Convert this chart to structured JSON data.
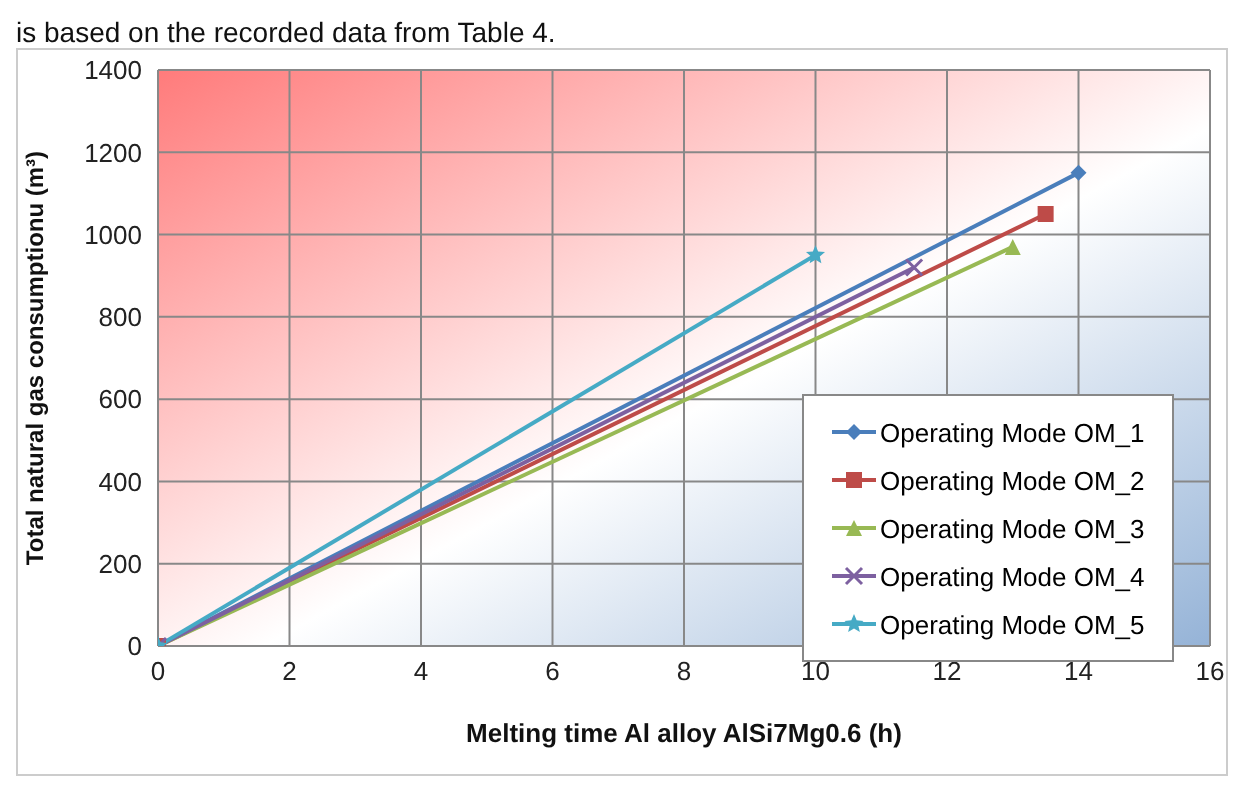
{
  "chart_data": {
    "type": "line",
    "annotations": [
      "is based on the recorded data from Table 4."
    ],
    "xlabel": "Melting time Al alloy AlSi7Mg0.6   (h)",
    "ylabel": "Total natural gas consumptionu (m³)",
    "series": [
      {
        "name": "Operating Mode OM_1",
        "color": "#4a7ebb",
        "marker": "diamond",
        "x": [
          0,
          14
        ],
        "values": [
          0,
          1150
        ]
      },
      {
        "name": "Operating Mode OM_2",
        "color": "#be4b48",
        "marker": "square",
        "x": [
          0,
          13.5
        ],
        "values": [
          0,
          1050
        ]
      },
      {
        "name": "Operating Mode OM_3",
        "color": "#98b954",
        "marker": "triangle",
        "x": [
          0,
          13
        ],
        "values": [
          0,
          970
        ]
      },
      {
        "name": "Operating Mode OM_4",
        "color": "#7d60a0",
        "marker": "cross",
        "x": [
          0,
          11.5
        ],
        "values": [
          0,
          920
        ]
      },
      {
        "name": "Operating Mode OM_5",
        "color": "#46aac5",
        "marker": "star",
        "x": [
          0,
          10
        ],
        "values": [
          0,
          950
        ]
      }
    ],
    "xlim": [
      0,
      16
    ],
    "xticks": [
      0,
      2,
      4,
      6,
      8,
      10,
      12,
      14,
      16
    ],
    "ylim": [
      0,
      1400
    ],
    "yticks": [
      0,
      200,
      400,
      600,
      800,
      1000,
      1200,
      1400
    ],
    "grid": true,
    "legend": "bottom right",
    "line_style": "solid"
  }
}
